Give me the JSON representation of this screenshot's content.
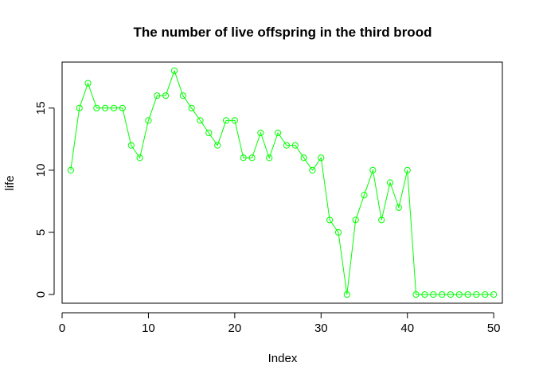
{
  "chart_data": {
    "type": "line",
    "title": "The number of live offspring in the third brood",
    "xlabel": "Index",
    "ylabel": "life",
    "xlim": [
      0,
      51
    ],
    "ylim": [
      -0.7,
      18.7
    ],
    "xticks": [
      0,
      10,
      20,
      30,
      40,
      50
    ],
    "yticks": [
      0,
      5,
      10,
      15
    ],
    "grid": false,
    "legend": "none",
    "marker": "open-circle",
    "color": "#00ff00",
    "x": [
      1,
      2,
      3,
      4,
      5,
      6,
      7,
      8,
      9,
      10,
      11,
      12,
      13,
      14,
      15,
      16,
      17,
      18,
      19,
      20,
      21,
      22,
      23,
      24,
      25,
      26,
      27,
      28,
      29,
      30,
      31,
      32,
      33,
      34,
      35,
      36,
      37,
      38,
      39,
      40,
      41,
      42,
      43,
      44,
      45,
      46,
      47,
      48,
      49,
      50
    ],
    "values": [
      10,
      15,
      17,
      15,
      15,
      15,
      15,
      12,
      11,
      14,
      16,
      16,
      18,
      16,
      15,
      14,
      13,
      12,
      14,
      14,
      11,
      11,
      13,
      11,
      13,
      12,
      12,
      11,
      10,
      11,
      6,
      5,
      0,
      6,
      8,
      10,
      6,
      9,
      7,
      10,
      0,
      0,
      0,
      0,
      0,
      0,
      0,
      0,
      0,
      0
    ]
  }
}
